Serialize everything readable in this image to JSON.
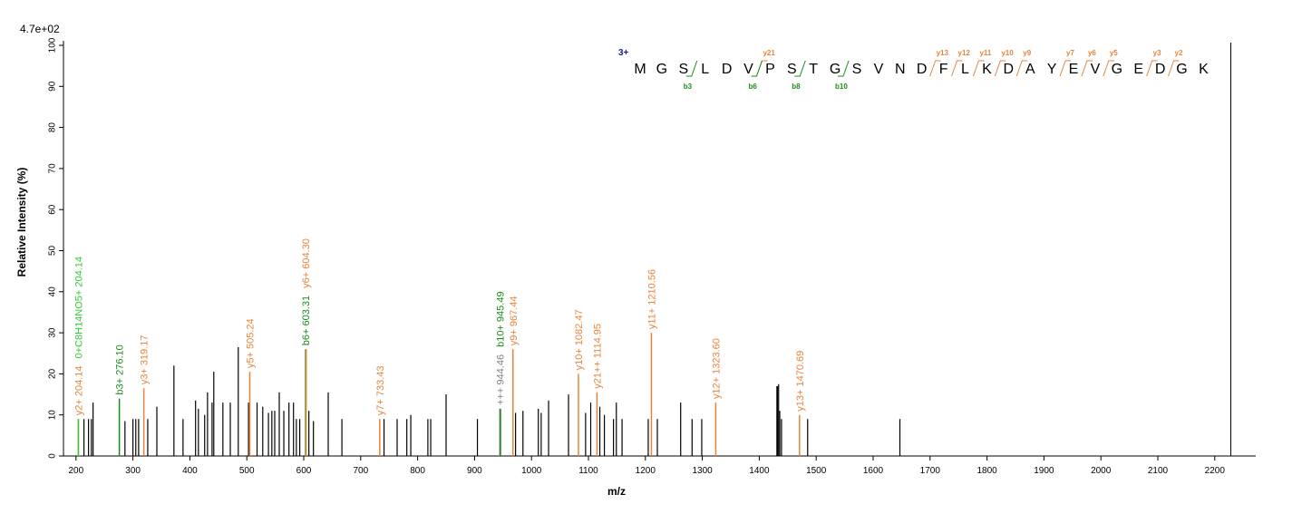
{
  "chart_data": {
    "type": "spectrum",
    "max_intensity_label": "4.7e+02",
    "ylabel": "Relative   Intensity (%)",
    "xlabel": "m/z",
    "xlim": [
      178,
      2272
    ],
    "ylim": [
      0,
      100
    ],
    "xticks": [
      200,
      300,
      400,
      500,
      600,
      700,
      800,
      900,
      1000,
      1100,
      1200,
      1300,
      1400,
      1500,
      1600,
      1700,
      1800,
      1900,
      2000,
      2100,
      2200
    ],
    "yticks": [
      0,
      10,
      20,
      30,
      40,
      50,
      60,
      70,
      80,
      90,
      100
    ],
    "peak_color": "#000000",
    "x": [
      214,
      222,
      227,
      230,
      286,
      300,
      305,
      310,
      326,
      342,
      372,
      388,
      410,
      415,
      426,
      431,
      439,
      442,
      458,
      471,
      485,
      503,
      518,
      528,
      538,
      544,
      549,
      557,
      565,
      574,
      582,
      587,
      593,
      609,
      617,
      643,
      667,
      741,
      764,
      781,
      788,
      818,
      823,
      850,
      905,
      972,
      985,
      1012,
      1017,
      1030,
      1065,
      1095,
      1104,
      1120,
      1128,
      1144,
      1149,
      1159,
      1205,
      1221,
      1262,
      1282,
      1299,
      1431,
      1432,
      1434,
      1436,
      1439,
      1485,
      1647
    ],
    "values": [
      9,
      9,
      9,
      13,
      8.5,
      9,
      9,
      9,
      9,
      12,
      22,
      9,
      13.5,
      11.5,
      10,
      15.5,
      13,
      20.5,
      13,
      13,
      26.5,
      13,
      13,
      12,
      10.5,
      11,
      11,
      15.5,
      11,
      13,
      13,
      9,
      9,
      11,
      8.5,
      15.5,
      9,
      9,
      9,
      9,
      10,
      9,
      9,
      15,
      9,
      10.5,
      11,
      11.5,
      10.5,
      13.5,
      15,
      10.5,
      13,
      12,
      10,
      9,
      13,
      9,
      9,
      9,
      13,
      9,
      9,
      17,
      17,
      17.5,
      11,
      9,
      9,
      9
    ],
    "annotations": [
      {
        "x": 204.14,
        "value": 9,
        "label": "y2+ 204.14",
        "color": "#e8833a"
      },
      {
        "x": 204.14,
        "value": 9,
        "label": "0+C8H14NO5+ 204.14",
        "color": "#33cc33"
      },
      {
        "x": 276.1,
        "value": 14,
        "label": "b3+ 276.10",
        "color": "#1a8c1a"
      },
      {
        "x": 319.17,
        "value": 16.5,
        "label": "y3+ 319.17",
        "color": "#e8833a"
      },
      {
        "x": 505.24,
        "value": 20.5,
        "label": "y5+ 505.24",
        "color": "#e8833a"
      },
      {
        "x": 603.31,
        "value": 26,
        "label": "b6+ 603.31",
        "color": "#1a8c1a"
      },
      {
        "x": 604.3,
        "value": 26,
        "label": "y6+ 604.30",
        "color": "#e8833a"
      },
      {
        "x": 733.43,
        "value": 9,
        "label": "y7+ 733.43",
        "color": "#e8833a"
      },
      {
        "x": 944.46,
        "value": 11.5,
        "label": "+++ 944.46",
        "color": "#808080"
      },
      {
        "x": 945.49,
        "value": 11.5,
        "label": "b10+ 945.49",
        "color": "#1a8c1a"
      },
      {
        "x": 967.44,
        "value": 26,
        "label": "y9+ 967.44",
        "color": "#e8833a"
      },
      {
        "x": 1082.47,
        "value": 20,
        "label": "y10+ 1082.47",
        "color": "#e8833a"
      },
      {
        "x": 1114.95,
        "value": 15.5,
        "label": "y21++ 1114.95",
        "color": "#e8833a"
      },
      {
        "x": 1210.56,
        "value": 30,
        "label": "y11+ 1210.56",
        "color": "#e8833a"
      },
      {
        "x": 1323.6,
        "value": 13,
        "label": "y12+ 1323.60",
        "color": "#e8833a"
      },
      {
        "x": 1470.69,
        "value": 10,
        "label": "y13+ 1470.69",
        "color": "#e8833a"
      }
    ],
    "sequence": {
      "charge": "3+",
      "charge_color": "#1a1a99",
      "y_color": "#e8833a",
      "b_color": "#1a8c1a",
      "residues": [
        "M",
        "G",
        "S",
        "L",
        "D",
        "V",
        "P",
        "S",
        "T",
        "G",
        "S",
        "V",
        "N",
        "D",
        "F",
        "L",
        "K",
        "D",
        "A",
        "Y",
        "E",
        "V",
        "G",
        "E",
        "D",
        "G",
        "K"
      ],
      "y_ions": [
        null,
        null,
        null,
        null,
        null,
        "y21",
        null,
        null,
        null,
        null,
        null,
        null,
        null,
        "y13",
        "y12",
        "y11",
        "y10",
        "y9",
        null,
        "y7",
        "y6",
        "y5",
        null,
        "y3",
        "y2",
        null
      ],
      "b_ions": [
        null,
        null,
        "b3",
        null,
        null,
        "b6",
        null,
        "b8",
        null,
        "b10",
        null,
        null,
        null,
        null,
        null,
        null,
        null,
        null,
        null,
        null,
        null,
        null,
        null,
        null,
        null,
        null
      ]
    }
  }
}
